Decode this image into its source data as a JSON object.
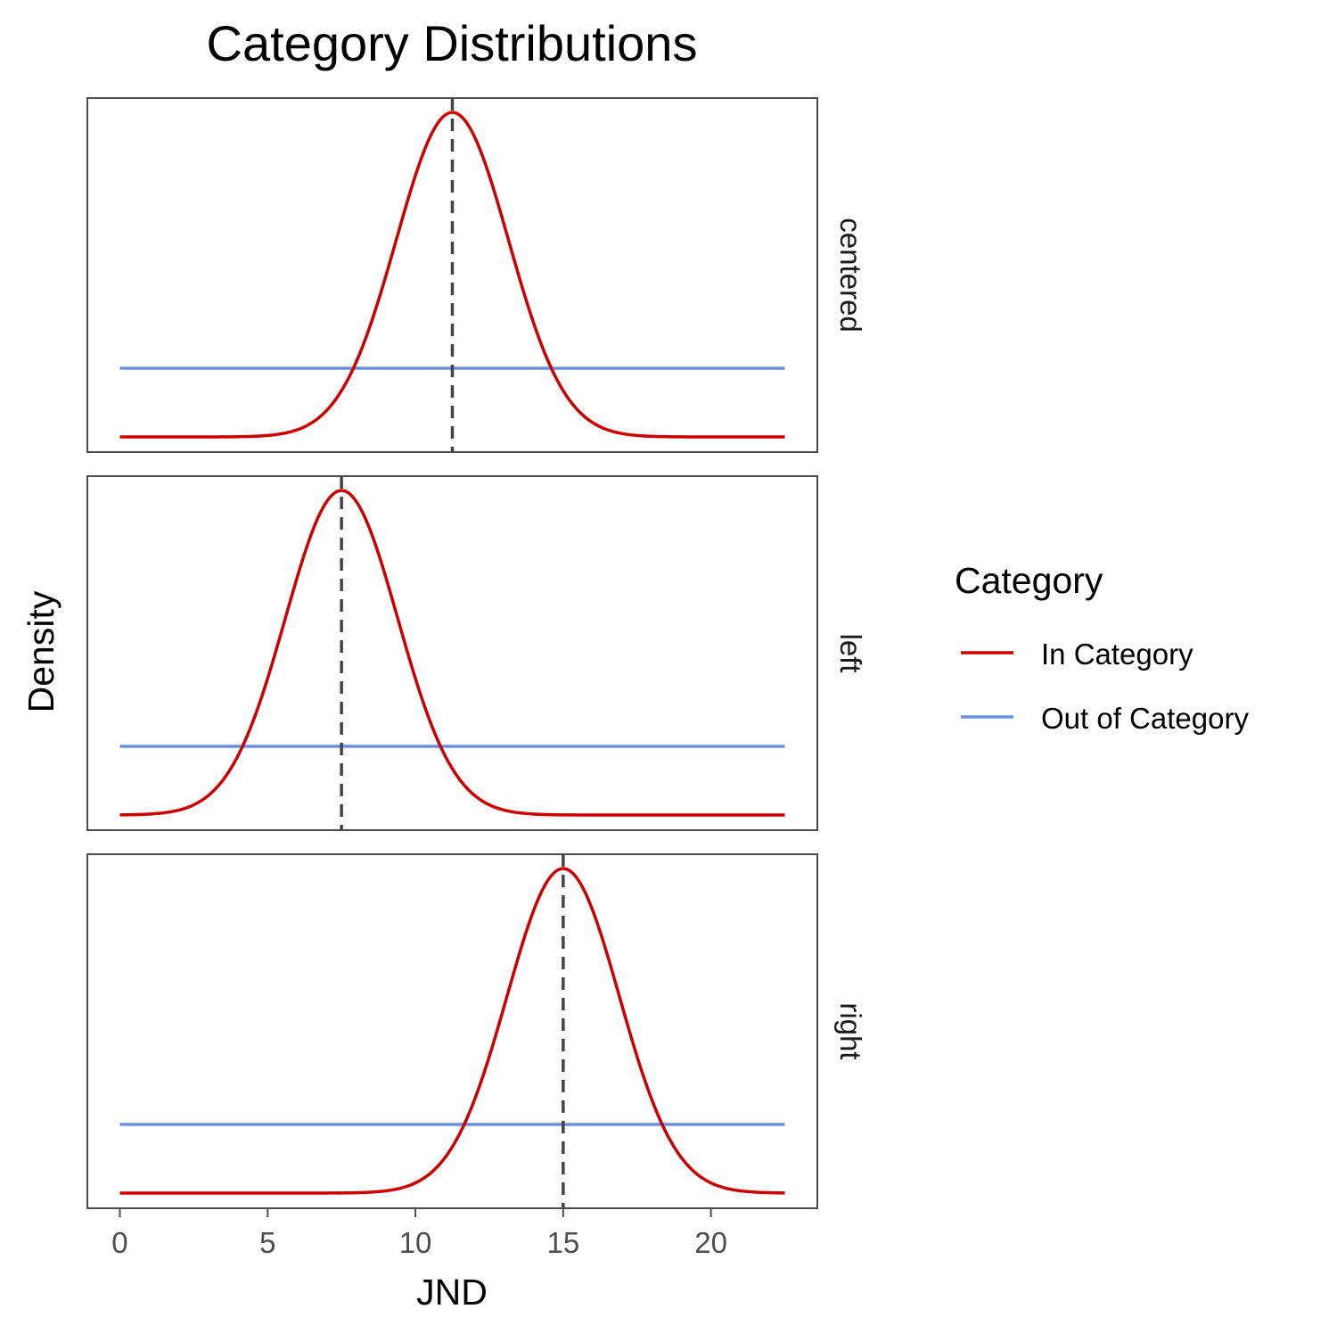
{
  "chart_data": {
    "type": "line",
    "title": "Category Distributions",
    "xlabel": "JND",
    "ylabel": "Density",
    "xlim": [
      -1.1,
      23.6
    ],
    "x_ticks": [
      0,
      5,
      10,
      15,
      20
    ],
    "x_tick_labels": [
      "0",
      "5",
      "10",
      "15",
      "20"
    ],
    "x_range": [
      0,
      22.5
    ],
    "y_ticks_shown": false,
    "grid": false,
    "facet_by": "position",
    "legend": {
      "title": "Category",
      "position": "right",
      "entries": [
        {
          "label": "In Category",
          "color": "#cc0000"
        },
        {
          "label": "Out of Category",
          "color": "#6a8fe0"
        }
      ]
    },
    "reference_line_color": "#444444",
    "panels": [
      {
        "label": "centered",
        "mean": 11.25,
        "sd": 1.9,
        "reference_x": 11.25,
        "in_category_peak": 0.2094,
        "out_of_category_level": 0.0444
      },
      {
        "label": "left",
        "mean": 7.5,
        "sd": 1.9,
        "reference_x": 7.5,
        "in_category_peak": 0.2094,
        "out_of_category_level": 0.0444
      },
      {
        "label": "right",
        "mean": 15,
        "sd": 1.9,
        "reference_x": 15,
        "in_category_peak": 0.2094,
        "out_of_category_level": 0.0444
      }
    ]
  }
}
